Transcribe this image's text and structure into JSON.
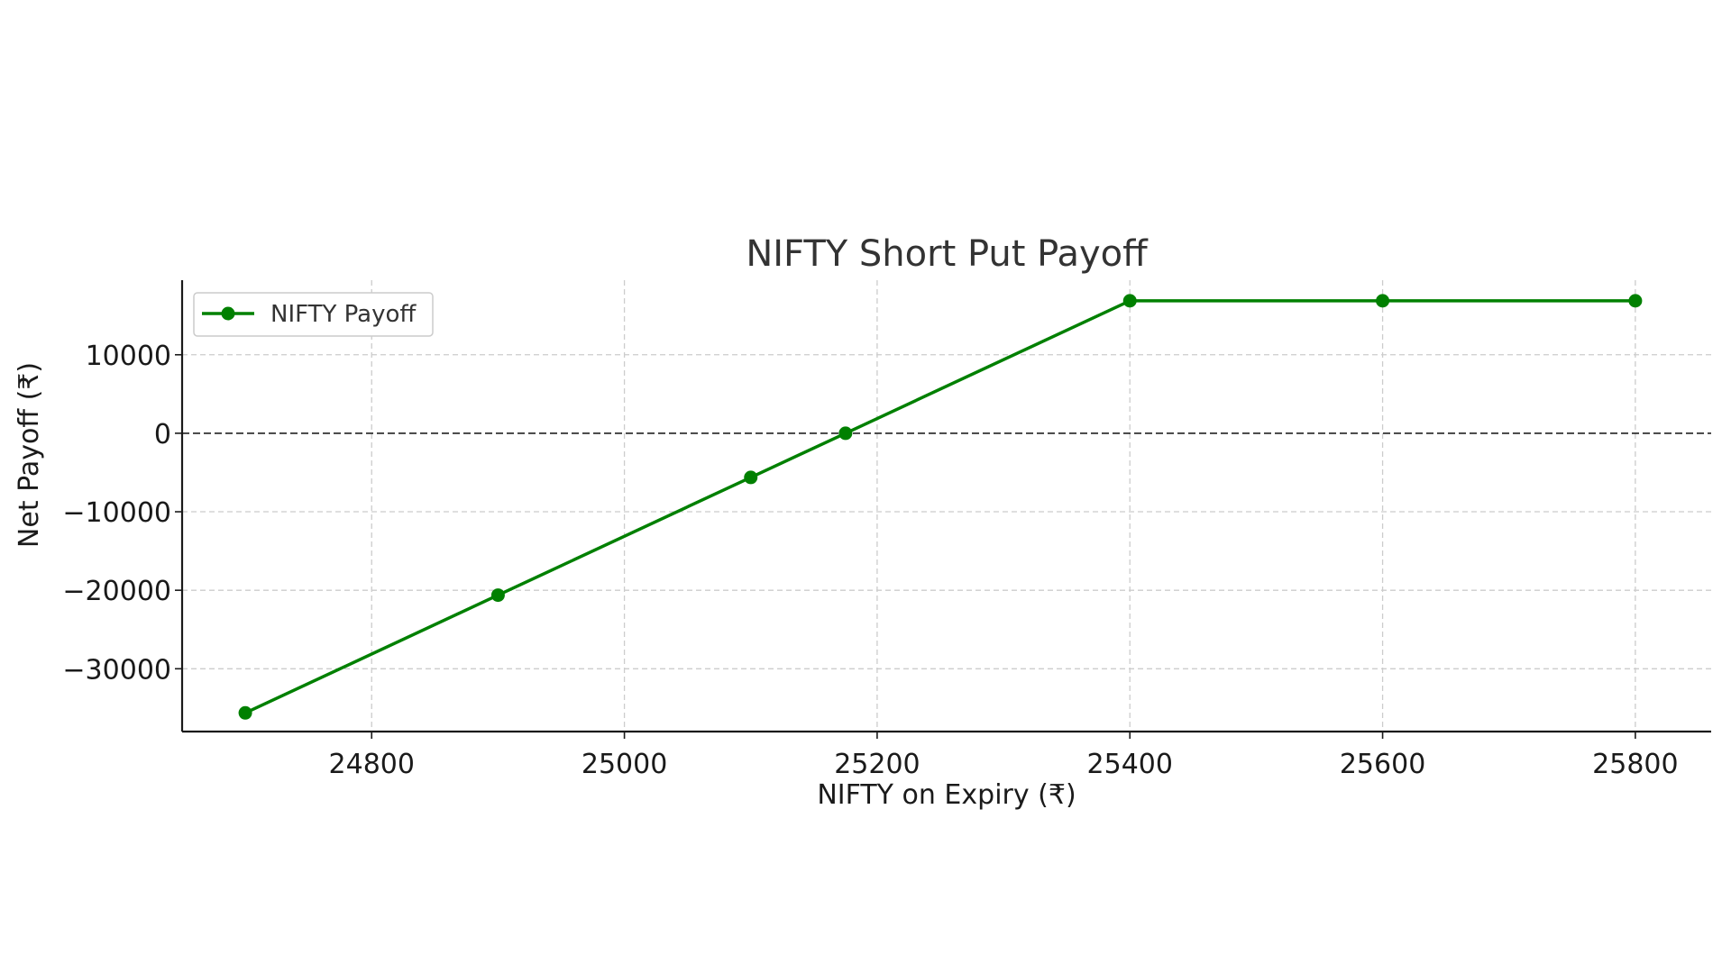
{
  "chart_data": {
    "type": "line",
    "title": "NIFTY Short Put Payoff",
    "xlabel": "NIFTY on Expiry (₹)",
    "ylabel": "Net Payoff (₹)",
    "xlim": [
      24650,
      25860
    ],
    "ylim": [
      -38000,
      19500
    ],
    "xticks": [
      24800,
      25000,
      25200,
      25400,
      25600,
      25800
    ],
    "yticks": [
      10000,
      0,
      -10000,
      -20000,
      -30000
    ],
    "ytick_labels": [
      "10000",
      "0",
      "−10000",
      "−20000",
      "−30000"
    ],
    "grid": true,
    "zero_line": true,
    "legend_position": "top-left",
    "series": [
      {
        "name": "NIFTY Payoff",
        "color": "#008000",
        "marker": "circle",
        "x": [
          24700,
          24900,
          25100,
          25175,
          25400,
          25600,
          25800
        ],
        "y": [
          -35625,
          -20625,
          -5625,
          0,
          16875,
          16875,
          16875
        ]
      }
    ]
  }
}
